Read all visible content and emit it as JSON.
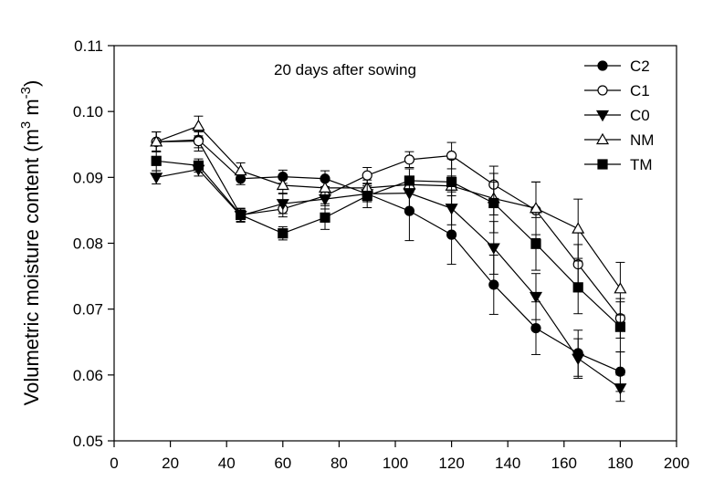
{
  "chart_data": {
    "type": "line",
    "title": "",
    "annotation": "20 days after sowing",
    "xlabel": "",
    "ylabel": "Volumetric moisture content (m³ m⁻³)",
    "xlim": [
      0,
      200
    ],
    "ylim": [
      0.05,
      0.11
    ],
    "xticks": [
      0,
      20,
      40,
      60,
      80,
      100,
      120,
      140,
      160,
      180,
      200
    ],
    "yticks": [
      "0.05",
      "0.06",
      "0.07",
      "0.08",
      "0.09",
      "0.10",
      "0.11"
    ],
    "grid": false,
    "legend_position": "top-right",
    "x": [
      15,
      30,
      45,
      60,
      75,
      90,
      105,
      120,
      135,
      150,
      165,
      180
    ],
    "series": [
      {
        "name": "C2",
        "marker": "circle-filled",
        "values": [
          0.0954,
          0.0957,
          0.0898,
          0.0901,
          0.0898,
          0.0875,
          0.0849,
          0.0813,
          0.0737,
          0.0671,
          0.0633,
          0.0605
        ],
        "errors": [
          0.0015,
          0.0012,
          0.0009,
          0.001,
          0.0012,
          0.0012,
          0.0045,
          0.0045,
          0.0045,
          0.004,
          0.0035,
          0.003
        ]
      },
      {
        "name": "C1",
        "marker": "circle-open",
        "values": [
          0.0954,
          0.0955,
          0.0843,
          0.0852,
          0.0872,
          0.0903,
          0.0927,
          0.0933,
          0.0889,
          0.085,
          0.0768,
          0.0686
        ],
        "errors": [
          0.0015,
          0.0015,
          0.001,
          0.0012,
          0.0012,
          0.0012,
          0.0012,
          0.002,
          0.0028,
          0.0043,
          0.003,
          0.003
        ]
      },
      {
        "name": "C0",
        "marker": "triangle-down-filled",
        "values": [
          0.09,
          0.0912,
          0.0842,
          0.086,
          0.0867,
          0.0875,
          0.0876,
          0.0853,
          0.0793,
          0.0719,
          0.0625,
          0.058
        ],
        "errors": [
          0.001,
          0.001,
          0.001,
          0.0015,
          0.0015,
          0.0012,
          0.0025,
          0.0025,
          0.004,
          0.0035,
          0.003,
          0.002
        ]
      },
      {
        "name": "NM",
        "marker": "triangle-up-open",
        "values": [
          0.0954,
          0.0978,
          0.091,
          0.0888,
          0.0884,
          0.0884,
          0.0889,
          0.0887,
          0.0868,
          0.0853,
          0.0822,
          0.0731
        ],
        "errors": [
          0.0015,
          0.0015,
          0.0012,
          0.0012,
          0.0012,
          0.0012,
          0.0012,
          0.0015,
          0.0025,
          0.004,
          0.0045,
          0.004
        ]
      },
      {
        "name": "TM",
        "marker": "square-filled",
        "values": [
          0.0925,
          0.0918,
          0.0843,
          0.0815,
          0.0839,
          0.0872,
          0.0895,
          0.0893,
          0.0861,
          0.0799,
          0.0733,
          0.0673
        ],
        "errors": [
          0.0015,
          0.001,
          0.001,
          0.001,
          0.0018,
          0.0018,
          0.0018,
          0.0035,
          0.0045,
          0.004,
          0.004,
          0.0038
        ]
      }
    ]
  }
}
